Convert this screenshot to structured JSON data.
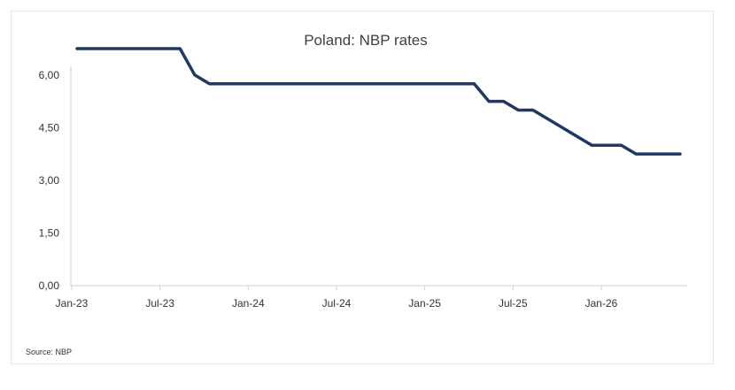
{
  "chart_data": {
    "type": "line",
    "title": "Poland: NBP rates",
    "source": "Source: NBP",
    "xlabel": "",
    "ylabel": "",
    "ylim": [
      0,
      6.75
    ],
    "y_ticks": [
      "0,00",
      "1,50",
      "3,00",
      "4,50",
      "6,00"
    ],
    "y_tick_values": [
      0,
      1.5,
      3,
      4.5,
      6
    ],
    "x_ticks": [
      "Jan-23",
      "Jul-23",
      "Jan-24",
      "Jul-24",
      "Jan-25",
      "Jul-25",
      "Jan-26"
    ],
    "x_tick_dates": [
      "2023-01",
      "2023-07",
      "2024-01",
      "2024-07",
      "2025-01",
      "2025-07",
      "2026-01"
    ],
    "x_range": [
      "2023-01",
      "2026-06"
    ],
    "grid": false,
    "legend": "none",
    "series": [
      {
        "color": "#1f3864",
        "points": [
          {
            "x": "2023-01",
            "y": 6.75
          },
          {
            "x": "2023-08",
            "y": 6.75
          },
          {
            "x": "2023-09",
            "y": 6.0
          },
          {
            "x": "2023-10",
            "y": 5.75
          },
          {
            "x": "2025-04",
            "y": 5.75
          },
          {
            "x": "2025-05",
            "y": 5.25
          },
          {
            "x": "2025-06",
            "y": 5.25
          },
          {
            "x": "2025-07",
            "y": 5.0
          },
          {
            "x": "2025-08",
            "y": 5.0
          },
          {
            "x": "2025-12",
            "y": 4.0
          },
          {
            "x": "2026-02",
            "y": 4.0
          },
          {
            "x": "2026-03",
            "y": 3.75
          },
          {
            "x": "2026-06",
            "y": 3.75
          }
        ]
      }
    ]
  }
}
